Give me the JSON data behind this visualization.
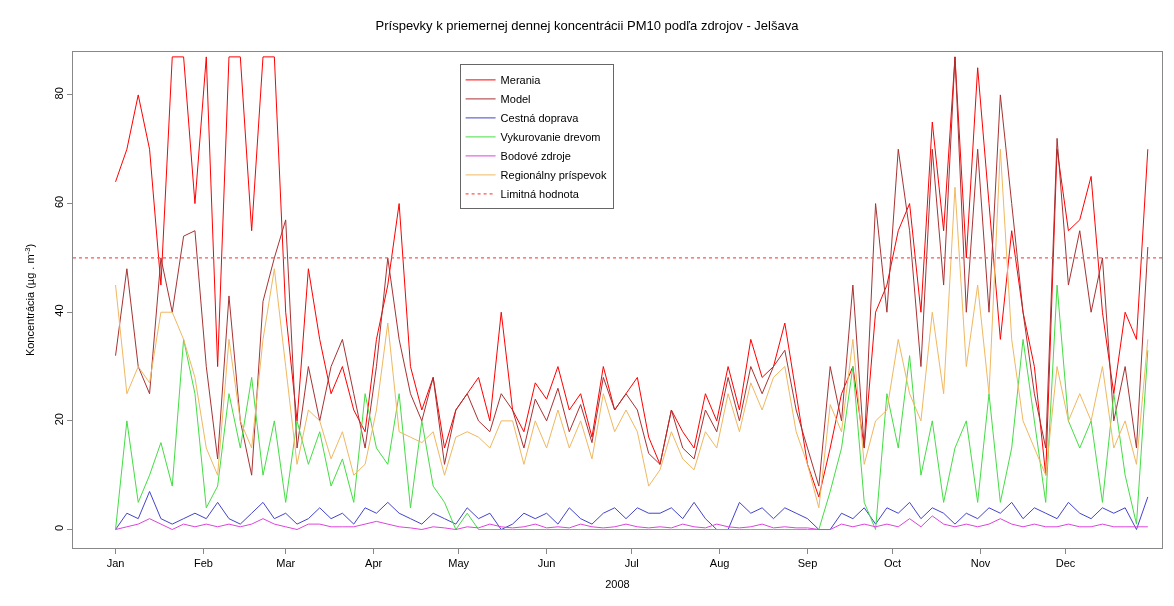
{
  "chart_data": {
    "type": "line",
    "title": "Príspevky k priemernej dennej koncentrácii PM10 podľa zdrojov - Jelšava",
    "xlabel": "2008",
    "ylabel": "Koncentrácia (µg . m$^{-3}$)",
    "x": [
      "2008-01-01",
      "2008-01-05",
      "2008-01-09",
      "2008-01-13",
      "2008-01-17",
      "2008-01-21",
      "2008-01-25",
      "2008-01-29",
      "2008-02-02",
      "2008-02-06",
      "2008-02-10",
      "2008-02-14",
      "2008-02-18",
      "2008-02-22",
      "2008-02-26",
      "2008-03-01",
      "2008-03-05",
      "2008-03-09",
      "2008-03-13",
      "2008-03-17",
      "2008-03-21",
      "2008-03-25",
      "2008-03-29",
      "2008-04-02",
      "2008-04-06",
      "2008-04-10",
      "2008-04-14",
      "2008-04-18",
      "2008-04-22",
      "2008-04-26",
      "2008-04-30",
      "2008-05-04",
      "2008-05-08",
      "2008-05-12",
      "2008-05-16",
      "2008-05-20",
      "2008-05-24",
      "2008-05-28",
      "2008-06-01",
      "2008-06-05",
      "2008-06-09",
      "2008-06-13",
      "2008-06-17",
      "2008-06-21",
      "2008-06-25",
      "2008-06-29",
      "2008-07-03",
      "2008-07-07",
      "2008-07-11",
      "2008-07-15",
      "2008-07-19",
      "2008-07-23",
      "2008-07-27",
      "2008-07-31",
      "2008-08-04",
      "2008-08-08",
      "2008-08-12",
      "2008-08-16",
      "2008-08-20",
      "2008-08-24",
      "2008-08-28",
      "2008-09-01",
      "2008-09-05",
      "2008-09-09",
      "2008-09-13",
      "2008-09-17",
      "2008-09-21",
      "2008-09-25",
      "2008-09-29",
      "2008-10-03",
      "2008-10-07",
      "2008-10-11",
      "2008-10-15",
      "2008-10-19",
      "2008-10-23",
      "2008-10-27",
      "2008-10-31",
      "2008-11-04",
      "2008-11-08",
      "2008-11-12",
      "2008-11-16",
      "2008-11-20",
      "2008-11-24",
      "2008-11-28",
      "2008-12-02",
      "2008-12-06",
      "2008-12-10",
      "2008-12-14",
      "2008-12-18",
      "2008-12-22",
      "2008-12-26",
      "2008-12-30"
    ],
    "series": [
      {
        "name": "Merania",
        "color": "#ff0000",
        "values": [
          64,
          70,
          80,
          70,
          45,
          87,
          87,
          60,
          87,
          30,
          87,
          87,
          55,
          87,
          87,
          40,
          20,
          48,
          35,
          25,
          30,
          22,
          18,
          35,
          45,
          60,
          30,
          22,
          28,
          15,
          22,
          25,
          28,
          20,
          40,
          22,
          18,
          27,
          24,
          30,
          22,
          25,
          17,
          30,
          22,
          25,
          28,
          17,
          12,
          22,
          18,
          15,
          25,
          20,
          30,
          22,
          35,
          28,
          30,
          38,
          25,
          12,
          6,
          15,
          25,
          30,
          15,
          40,
          45,
          55,
          60,
          40,
          75,
          55,
          87,
          50,
          85,
          60,
          35,
          55,
          40,
          30,
          10,
          70,
          55,
          57,
          65,
          40,
          25,
          40,
          35,
          70
        ]
      },
      {
        "name": "Model",
        "color": "#a83232",
        "values": [
          32,
          48,
          30,
          25,
          50,
          40,
          54,
          55,
          30,
          13,
          43,
          20,
          10,
          42,
          50,
          57,
          15,
          30,
          20,
          30,
          35,
          25,
          15,
          30,
          50,
          35,
          25,
          20,
          28,
          12,
          22,
          25,
          20,
          18,
          25,
          22,
          15,
          24,
          20,
          26,
          18,
          23,
          16,
          28,
          22,
          25,
          22,
          14,
          12,
          22,
          15,
          13,
          22,
          18,
          28,
          20,
          30,
          25,
          30,
          33,
          22,
          15,
          8,
          30,
          20,
          45,
          15,
          60,
          40,
          70,
          55,
          30,
          70,
          45,
          87,
          40,
          70,
          40,
          80,
          60,
          40,
          25,
          15,
          72,
          45,
          55,
          40,
          50,
          20,
          30,
          15,
          52
        ]
      },
      {
        "name": "Cestná doprava",
        "color": "#4444cc",
        "values": [
          0,
          3,
          2,
          7,
          2,
          1,
          2,
          3,
          2,
          5,
          2,
          1,
          3,
          5,
          2,
          3,
          1,
          2,
          4,
          2,
          3,
          1,
          4,
          3,
          5,
          3,
          2,
          1,
          3,
          2,
          1,
          4,
          2,
          3,
          0,
          1,
          3,
          2,
          3,
          1,
          4,
          2,
          1,
          3,
          4,
          2,
          4,
          3,
          3,
          4,
          2,
          5,
          2,
          0,
          0,
          5,
          3,
          4,
          2,
          4,
          3,
          2,
          0,
          0,
          3,
          2,
          4,
          1,
          4,
          3,
          5,
          2,
          4,
          3,
          1,
          3,
          2,
          4,
          3,
          5,
          2,
          4,
          3,
          2,
          5,
          3,
          2,
          4,
          3,
          4,
          0,
          6
        ]
      },
      {
        "name": "Vykurovanie drevom",
        "color": "#44dd44",
        "values": [
          0,
          20,
          5,
          10,
          16,
          8,
          35,
          25,
          4,
          8,
          25,
          15,
          28,
          10,
          20,
          5,
          20,
          12,
          18,
          8,
          13,
          5,
          25,
          15,
          12,
          25,
          4,
          20,
          8,
          5,
          0,
          3,
          0,
          0,
          0,
          0,
          0,
          0,
          0,
          0,
          0,
          0,
          0,
          0,
          0,
          0,
          0,
          0,
          0,
          0,
          0,
          0,
          0,
          0,
          0,
          0,
          0,
          0,
          0,
          0,
          0,
          0,
          0,
          7,
          15,
          30,
          5,
          0,
          25,
          15,
          32,
          10,
          20,
          5,
          15,
          20,
          5,
          25,
          5,
          15,
          35,
          20,
          5,
          45,
          20,
          15,
          20,
          5,
          25,
          10,
          1,
          33
        ]
      },
      {
        "name": "Bodové zdroje",
        "color": "#dd44dd",
        "values": [
          0,
          0.5,
          1,
          2,
          1,
          0,
          1,
          0.5,
          1,
          0.5,
          1,
          0.5,
          1,
          2,
          1,
          0.5,
          0,
          1,
          1,
          0.5,
          0.5,
          0.5,
          1,
          1.5,
          1,
          0.5,
          0.3,
          0,
          0.5,
          0.3,
          0,
          0.5,
          0.3,
          1,
          0.5,
          0.3,
          0.5,
          1,
          0.3,
          0.5,
          0.3,
          1,
          0.5,
          0.3,
          0.5,
          1,
          0.5,
          0.3,
          0.5,
          0.3,
          1,
          0.5,
          0.3,
          1,
          0.5,
          0.3,
          0.5,
          1,
          0.3,
          0.5,
          0.3,
          0.3,
          0,
          0,
          1,
          0.5,
          1,
          0.5,
          1,
          0.5,
          2,
          0.5,
          2.5,
          1,
          0.5,
          1,
          0.5,
          1,
          2,
          1,
          0.5,
          1,
          0.5,
          0.5,
          1,
          0.5,
          0.5,
          1,
          0.5,
          0.5,
          0.5,
          0.5
        ]
      },
      {
        "name": "Regionálny príspevok",
        "color": "#f0b860",
        "values": [
          45,
          25,
          30,
          27,
          40,
          40,
          35,
          28,
          15,
          10,
          35,
          20,
          15,
          35,
          48,
          30,
          12,
          22,
          20,
          13,
          18,
          10,
          12,
          22,
          38,
          18,
          17,
          16,
          18,
          10,
          17,
          18,
          17,
          15,
          20,
          20,
          12,
          20,
          15,
          22,
          15,
          20,
          13,
          25,
          18,
          22,
          18,
          8,
          11,
          18,
          13,
          11,
          18,
          15,
          25,
          18,
          27,
          22,
          28,
          30,
          18,
          12,
          4,
          23,
          18,
          35,
          12,
          20,
          22,
          35,
          25,
          20,
          40,
          25,
          63,
          30,
          45,
          25,
          70,
          35,
          20,
          15,
          10,
          30,
          20,
          25,
          20,
          30,
          15,
          20,
          12,
          35
        ]
      }
    ],
    "ref_lines": [
      {
        "axis": "y",
        "value": 50,
        "label": "Limitná hodnota",
        "color": "#ff5555",
        "line_style": "dotted"
      }
    ],
    "xlim": [
      "2007-12-17",
      "2009-01-04"
    ],
    "xticks": [
      {
        "value": "2008-01-01",
        "label": "Jan"
      },
      {
        "value": "2008-02-01",
        "label": "Feb"
      },
      {
        "value": "2008-03-01",
        "label": "Mar"
      },
      {
        "value": "2008-04-01",
        "label": "Apr"
      },
      {
        "value": "2008-05-01",
        "label": "May"
      },
      {
        "value": "2008-06-01",
        "label": "Jun"
      },
      {
        "value": "2008-07-01",
        "label": "Jul"
      },
      {
        "value": "2008-08-01",
        "label": "Aug"
      },
      {
        "value": "2008-09-01",
        "label": "Sep"
      },
      {
        "value": "2008-10-01",
        "label": "Oct"
      },
      {
        "value": "2008-11-01",
        "label": "Nov"
      },
      {
        "value": "2008-12-01",
        "label": "Dec"
      }
    ],
    "ylim": [
      -3.4,
      87.9
    ],
    "yticks": [
      0,
      20,
      40,
      60,
      80
    ],
    "legend": "top",
    "marker": "none",
    "line_style": "solid"
  }
}
